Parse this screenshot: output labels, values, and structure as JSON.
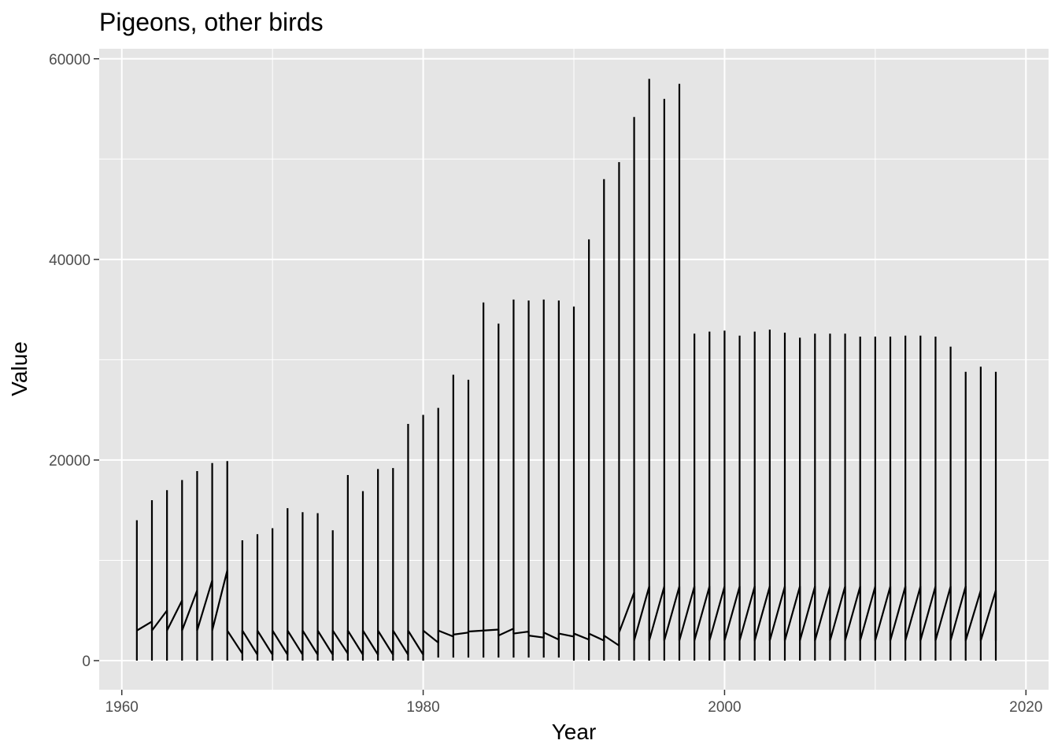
{
  "chart_data": {
    "type": "line",
    "title": "Pigeons, other birds",
    "xlabel": "Year",
    "ylabel": "Value",
    "xlim": [
      1958.5,
      2021.5
    ],
    "ylim": [
      -2900,
      61000
    ],
    "x_ticks": [
      1960,
      1980,
      2000,
      2020
    ],
    "y_ticks": [
      0,
      20000,
      40000,
      60000
    ],
    "x_tick_labels": [
      "1960",
      "1980",
      "2000",
      "2020"
    ],
    "y_tick_labels": [
      "0",
      "20000",
      "40000",
      "60000"
    ],
    "grid": true,
    "legend": "none",
    "colors": {
      "panel": "#e5e5e5",
      "grid": "#ffffff",
      "line": "#000000",
      "tick": "#333333"
    },
    "series": [
      {
        "x": [
          1961,
          1962,
          1963,
          1964,
          1965,
          1966,
          1967,
          1968,
          1969,
          1970,
          1971,
          1972,
          1973,
          1974,
          1975,
          1976,
          1977,
          1978,
          1979,
          1980,
          1981,
          1982,
          1983,
          1984,
          1985,
          1986,
          1987,
          1988,
          1989,
          1990,
          1991,
          1992,
          1993,
          1994,
          1995,
          1996,
          1997,
          1998,
          1999,
          2000,
          2001,
          2002,
          2003,
          2004,
          2005,
          2006,
          2007,
          2008,
          2009,
          2010,
          2011,
          2012,
          2013,
          2014,
          2015,
          2016,
          2017,
          2018
        ],
        "high": [
          14000,
          16000,
          17000,
          18000,
          18900,
          19700,
          19900,
          12000,
          12600,
          13200,
          15200,
          14800,
          14700,
          13000,
          18500,
          16900,
          19100,
          19200,
          23600,
          24500,
          25200,
          28500,
          28000,
          35700,
          33600,
          36000,
          35900,
          36000,
          35900,
          35300,
          42000,
          48000,
          49700,
          54200,
          58000,
          56000,
          57500,
          32600,
          32800,
          32900,
          32400,
          32800,
          33000,
          32700,
          32200,
          32600,
          32600,
          32600,
          32300,
          32300,
          32300,
          32400,
          32400,
          32300,
          31300,
          28800,
          29300,
          28800
        ],
        "low": [
          0,
          0,
          0,
          0,
          0,
          0,
          0,
          0,
          0,
          0,
          0,
          0,
          0,
          0,
          0,
          0,
          0,
          0,
          0,
          0,
          300,
          300,
          300,
          300,
          300,
          300,
          300,
          300,
          300,
          0,
          0,
          0,
          0,
          0,
          0,
          0,
          0,
          0,
          0,
          0,
          0,
          0,
          0,
          0,
          0,
          0,
          0,
          0,
          0,
          0,
          0,
          0,
          0,
          0,
          0,
          0,
          0,
          0
        ],
        "start": [
          3000,
          3000,
          3000,
          3000,
          3000,
          3000,
          3000,
          3000,
          3000,
          3000,
          3000,
          3000,
          3000,
          3000,
          3000,
          3000,
          3000,
          3000,
          3000,
          3000,
          3000,
          2600,
          2900,
          3000,
          2500,
          2700,
          2500,
          2800,
          2700,
          2700,
          2700,
          2500,
          2800,
          2000,
          2000,
          2000,
          2000,
          2000,
          2000,
          2000,
          2000,
          2000,
          2000,
          2000,
          2000,
          2000,
          2000,
          2000,
          2000,
          2000,
          2000,
          2000,
          2000,
          2000,
          2000,
          2000,
          2000,
          2000
        ],
        "end": [
          3900,
          5000,
          6000,
          7000,
          8000,
          9000,
          700,
          600,
          600,
          600,
          600,
          600,
          600,
          700,
          600,
          600,
          600,
          600,
          600,
          1800,
          2400,
          2800,
          3000,
          3100,
          3200,
          2900,
          2300,
          2100,
          2400,
          2100,
          2000,
          1500,
          6800,
          7400,
          7400,
          7400,
          7400,
          7400,
          7400,
          7400,
          7400,
          7400,
          7400,
          7400,
          7400,
          7400,
          7400,
          7400,
          7400,
          7400,
          7400,
          7400,
          7400,
          7400,
          7400,
          7000,
          7000,
          7000
        ]
      }
    ]
  }
}
